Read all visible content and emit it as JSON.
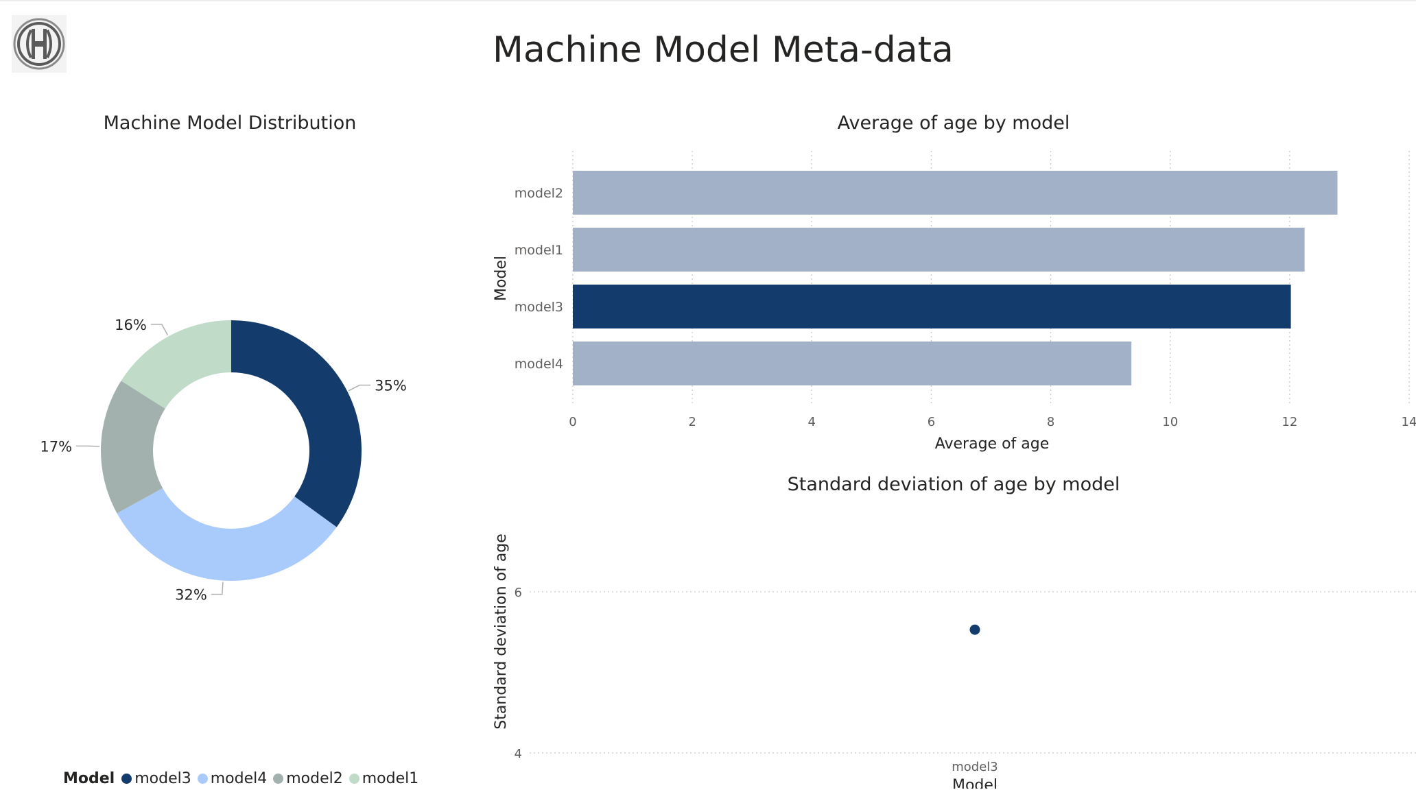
{
  "page": {
    "title": "Machine Model Meta-data"
  },
  "colors": {
    "highlight": "#133c6c",
    "muted_bar": "#a2b0c8",
    "grid": "#c8c8c8",
    "text": "#252423",
    "axis_text": "#605e5c"
  },
  "logo": {
    "icon": "bosch-logo-icon"
  },
  "donut": {
    "title": "Machine Model Distribution",
    "legend_title": "Model",
    "legend": [
      {
        "name": "model3",
        "color": "#133c6c"
      },
      {
        "name": "model4",
        "color": "#a9cbfb"
      },
      {
        "name": "model2",
        "color": "#a3b1ae"
      },
      {
        "name": "model1",
        "color": "#c0dbc8"
      }
    ]
  },
  "bar": {
    "title": "Average of age by model",
    "xlabel": "Average of age",
    "ylabel": "Model"
  },
  "scatter": {
    "title": "Standard deviation of age by model",
    "xlabel": "Model",
    "ylabel": "Standard deviation of age"
  },
  "chart_data": [
    {
      "type": "pie",
      "title": "Machine Model Distribution",
      "legend_title": "Model",
      "legend_position": "bottom-left",
      "categories": [
        "model3",
        "model4",
        "model2",
        "model1"
      ],
      "values": [
        35,
        32,
        17,
        16
      ],
      "labels": [
        "35%",
        "32%",
        "17%",
        "16%"
      ],
      "colors": [
        "#133c6c",
        "#a9cbfb",
        "#a3b1ae",
        "#c0dbc8"
      ]
    },
    {
      "type": "bar",
      "orientation": "horizontal",
      "title": "Average of age by model",
      "categories": [
        "model2",
        "model1",
        "model3",
        "model4"
      ],
      "values": [
        12.8,
        12.25,
        12.02,
        9.35
      ],
      "highlight": "model3",
      "xlabel": "Average of age",
      "ylabel": "Model",
      "xlim": [
        0,
        14
      ],
      "xticks": [
        "0",
        "2",
        "4",
        "6",
        "8",
        "10",
        "12",
        "14"
      ],
      "grid": true
    },
    {
      "type": "scatter",
      "title": "Standard deviation of age by model",
      "categories": [
        "model3"
      ],
      "values": [
        5.53
      ],
      "xlabel": "Model",
      "ylabel": "Standard deviation of age",
      "ylim": [
        4,
        6
      ],
      "yticks": [
        "4",
        "6"
      ],
      "grid": true
    }
  ]
}
